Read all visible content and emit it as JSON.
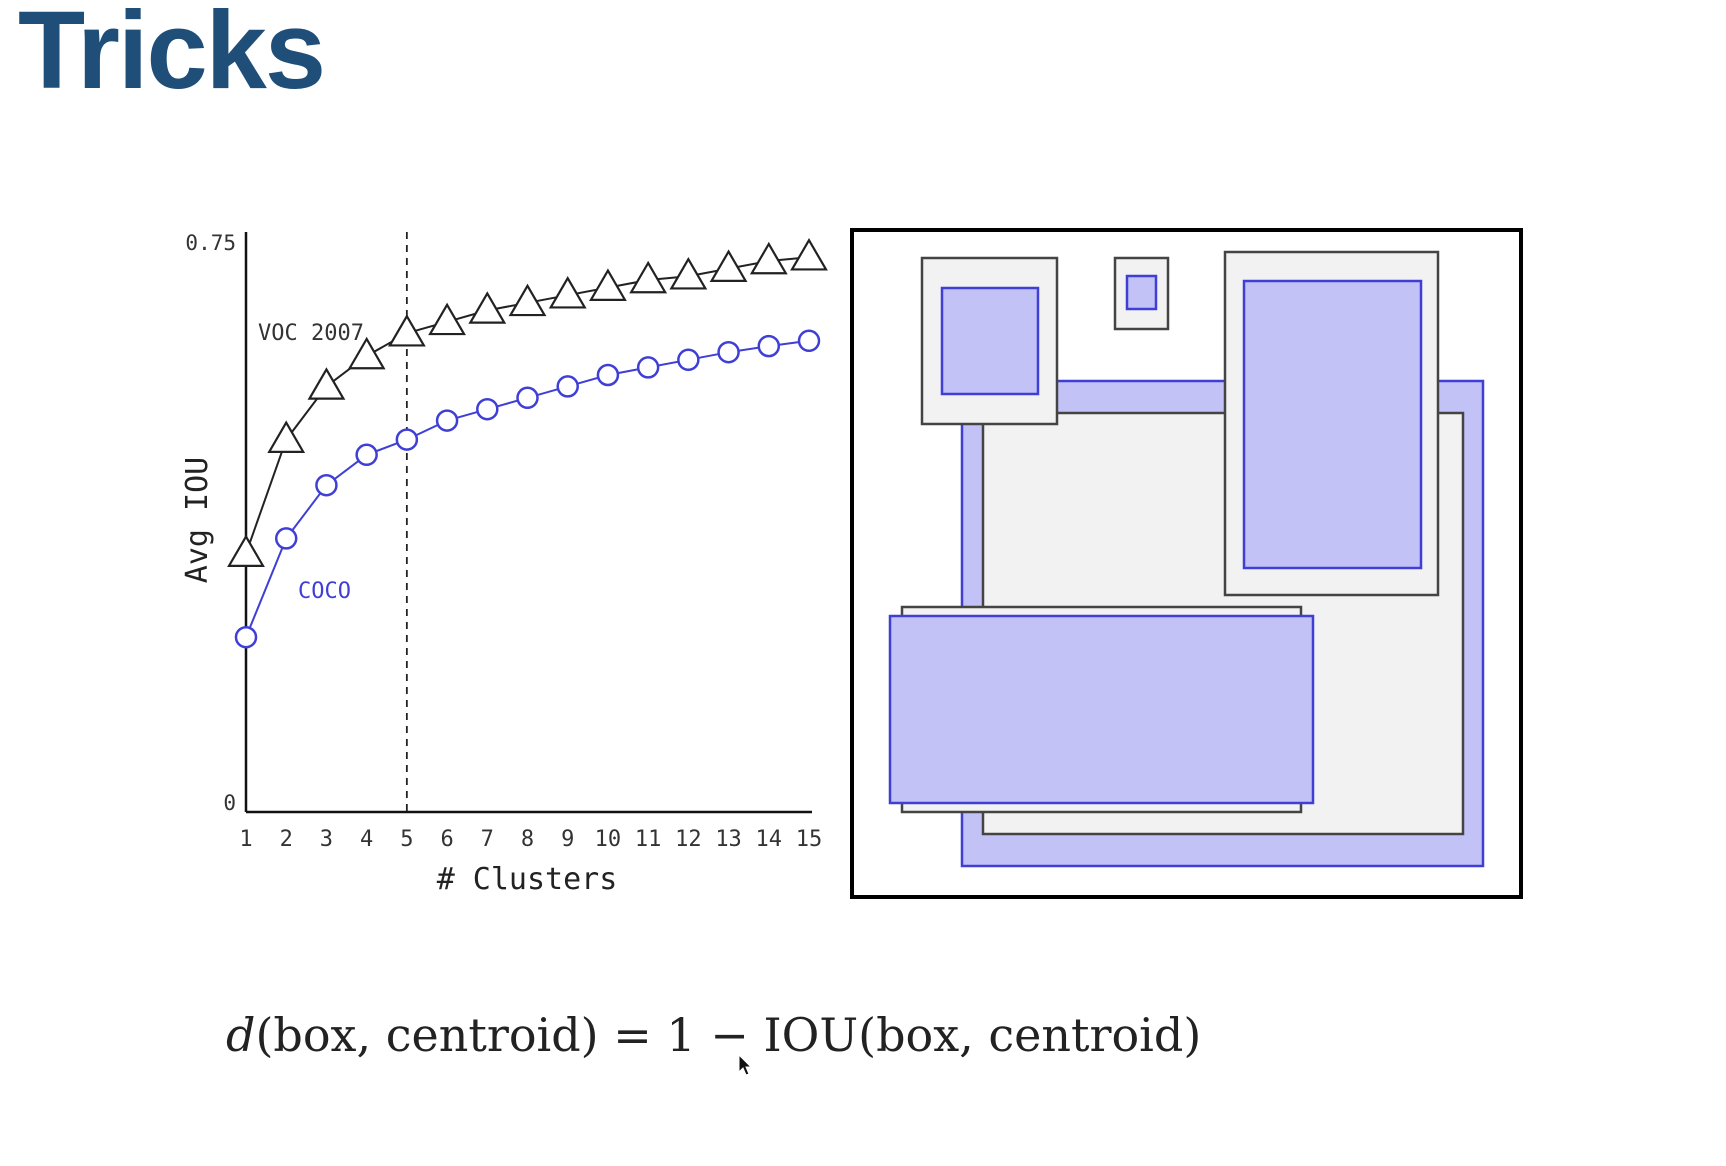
{
  "slide": {
    "title": "Tricks",
    "formula": {
      "fn": "d",
      "lhs_args": "(box, centroid)",
      "equals": " = 1 − ",
      "rhs_fn": "IOU",
      "rhs_args": "(box, centroid)"
    }
  },
  "chart_data": {
    "type": "line",
    "xlabel": "# Clusters",
    "ylabel": "Avg IOU",
    "x": [
      1,
      2,
      3,
      4,
      5,
      6,
      7,
      8,
      9,
      10,
      11,
      12,
      13,
      14,
      15
    ],
    "ylim": [
      0,
      0.75
    ],
    "ytick_labels": [
      "0",
      "0.75"
    ],
    "vline_x": 5,
    "grid": false,
    "legend": "inline labels",
    "series": [
      {
        "name": "VOC 2007",
        "marker": "triangle",
        "color": "#222222",
        "values": [
          0.34,
          0.49,
          0.56,
          0.6,
          0.63,
          0.645,
          0.66,
          0.67,
          0.68,
          0.69,
          0.7,
          0.705,
          0.715,
          0.725,
          0.73
        ]
      },
      {
        "name": "COCO",
        "marker": "circle",
        "color": "#3f3fd6",
        "values": [
          0.23,
          0.36,
          0.43,
          0.47,
          0.49,
          0.515,
          0.53,
          0.545,
          0.56,
          0.575,
          0.585,
          0.595,
          0.605,
          0.613,
          0.62
        ]
      }
    ]
  },
  "colors": {
    "title": "#1f4e79",
    "box_fill": "#c2c2f7",
    "box_stroke": "#3f3fd6",
    "gray_fill": "#f2f2f2",
    "gray_stroke": "#444444"
  }
}
